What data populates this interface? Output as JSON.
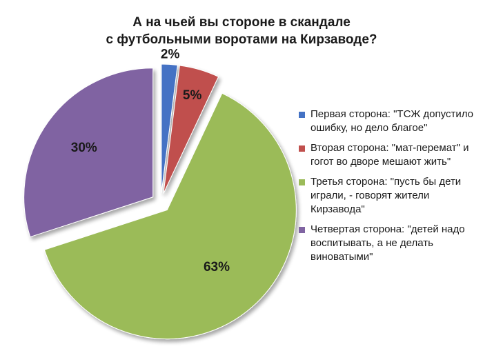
{
  "chart_data": {
    "type": "pie",
    "title": [
      "А на чьей вы стороне в скандале",
      "с футбольными воротами на Кирзаводе?"
    ],
    "slices": [
      {
        "label": "Первая сторона: \"ТСЖ допустило ошибку, но дело благое\"",
        "value": 2,
        "display": "2%",
        "color": "#4472C4",
        "exploded": true
      },
      {
        "label": "Вторая сторона: \"мат-перемат\" и гогот во дворе мешают жить\"",
        "value": 5,
        "display": "5%",
        "color": "#C0504D",
        "exploded": true
      },
      {
        "label": "Третья сторона: \"пусть бы дети играли, - говорят жители Кирзавода\"",
        "value": 63,
        "display": "63%",
        "color": "#9BBB59",
        "exploded": true
      },
      {
        "label": "Четвертая сторона: \"детей надо воспитывать, а не делать виноватыми\"",
        "value": 30,
        "display": "30%",
        "color": "#8064A2",
        "exploded": true
      }
    ],
    "legend_position": "right"
  }
}
